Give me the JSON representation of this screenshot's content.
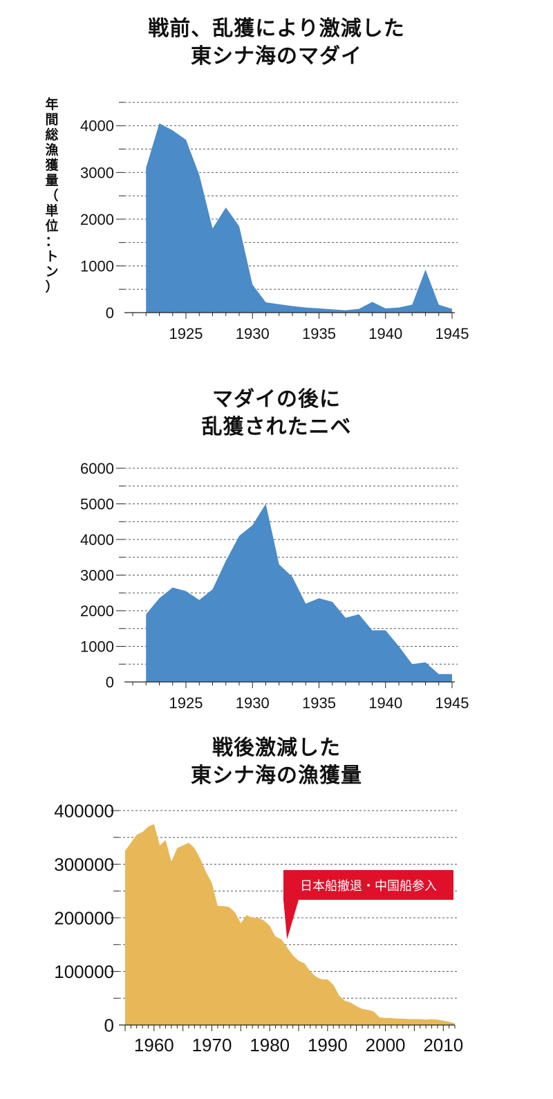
{
  "chart_data": [
    {
      "type": "area",
      "title_lines": [
        "戦前、乱獲により激減した",
        "東シナ海のマダイ"
      ],
      "ylabel": "年間総漁獲量（単位：トン）",
      "xlabel": "",
      "color": "#4a8bc8",
      "xlim": [
        1921,
        1945
      ],
      "ylim": [
        0,
        4500
      ],
      "yticks": [
        0,
        1000,
        2000,
        3000,
        4000
      ],
      "xticks": [
        1925,
        1930,
        1935,
        1940,
        1945
      ],
      "grid": true,
      "x": [
        1922,
        1923,
        1924,
        1925,
        1926,
        1927,
        1928,
        1929,
        1930,
        1931,
        1932,
        1933,
        1934,
        1935,
        1936,
        1937,
        1938,
        1939,
        1940,
        1941,
        1942,
        1943,
        1944,
        1945
      ],
      "values": [
        3100,
        4050,
        3900,
        3700,
        2950,
        1800,
        2250,
        1850,
        600,
        220,
        180,
        140,
        110,
        90,
        70,
        50,
        80,
        230,
        90,
        110,
        170,
        920,
        170,
        80
      ]
    },
    {
      "type": "area",
      "title_lines": [
        "マダイの後に",
        "乱獲されたニベ"
      ],
      "ylabel": "",
      "xlabel": "",
      "color": "#4a8bc8",
      "xlim": [
        1921,
        1945
      ],
      "ylim": [
        0,
        6000
      ],
      "yticks": [
        0,
        1000,
        2000,
        3000,
        4000,
        5000,
        6000
      ],
      "xticks": [
        1925,
        1930,
        1935,
        1940,
        1945
      ],
      "grid": true,
      "x": [
        1922,
        1923,
        1924,
        1925,
        1926,
        1927,
        1928,
        1929,
        1930,
        1931,
        1932,
        1933,
        1934,
        1935,
        1936,
        1937,
        1938,
        1939,
        1940,
        1941,
        1942,
        1943,
        1944,
        1945
      ],
      "values": [
        1900,
        2350,
        2650,
        2550,
        2300,
        2600,
        3400,
        4100,
        4400,
        5000,
        3300,
        2950,
        2200,
        2350,
        2250,
        1800,
        1900,
        1450,
        1450,
        1000,
        500,
        550,
        220,
        220
      ]
    },
    {
      "type": "area",
      "title_lines": [
        "戦後激減した",
        "東シナ海の漁獲量"
      ],
      "ylabel": "",
      "xlabel": "",
      "color": "#e8b858",
      "xlim": [
        1955,
        2012
      ],
      "ylim": [
        0,
        400000
      ],
      "yticks": [
        0,
        100000,
        200000,
        300000,
        400000
      ],
      "xticks": [
        1960,
        1970,
        1980,
        1990,
        2000,
        2010
      ],
      "grid": true,
      "annotation": {
        "text": "日本船撤退・中国船参入",
        "x": 1983,
        "y": 160000,
        "color": "#e0102a"
      },
      "x": [
        1955,
        1956,
        1957,
        1958,
        1959,
        1960,
        1961,
        1962,
        1963,
        1964,
        1965,
        1966,
        1967,
        1968,
        1969,
        1970,
        1971,
        1972,
        1973,
        1974,
        1975,
        1976,
        1977,
        1978,
        1979,
        1980,
        1981,
        1982,
        1983,
        1984,
        1985,
        1986,
        1987,
        1988,
        1989,
        1990,
        1991,
        1992,
        1993,
        1994,
        1995,
        1996,
        1997,
        1998,
        1999,
        2000,
        2001,
        2002,
        2003,
        2004,
        2005,
        2006,
        2007,
        2008,
        2009,
        2010,
        2011,
        2012
      ],
      "values": [
        325000,
        340000,
        355000,
        360000,
        370000,
        375000,
        335000,
        345000,
        305000,
        330000,
        335000,
        340000,
        330000,
        310000,
        285000,
        265000,
        222000,
        222000,
        220000,
        210000,
        190000,
        205000,
        200000,
        200000,
        195000,
        185000,
        165000,
        160000,
        145000,
        130000,
        120000,
        115000,
        100000,
        90000,
        85000,
        85000,
        75000,
        55000,
        45000,
        42000,
        35000,
        30000,
        28000,
        25000,
        14000,
        13000,
        13000,
        12000,
        12000,
        11000,
        11000,
        11000,
        10000,
        11000,
        10000,
        8000,
        6000,
        3000
      ]
    }
  ]
}
